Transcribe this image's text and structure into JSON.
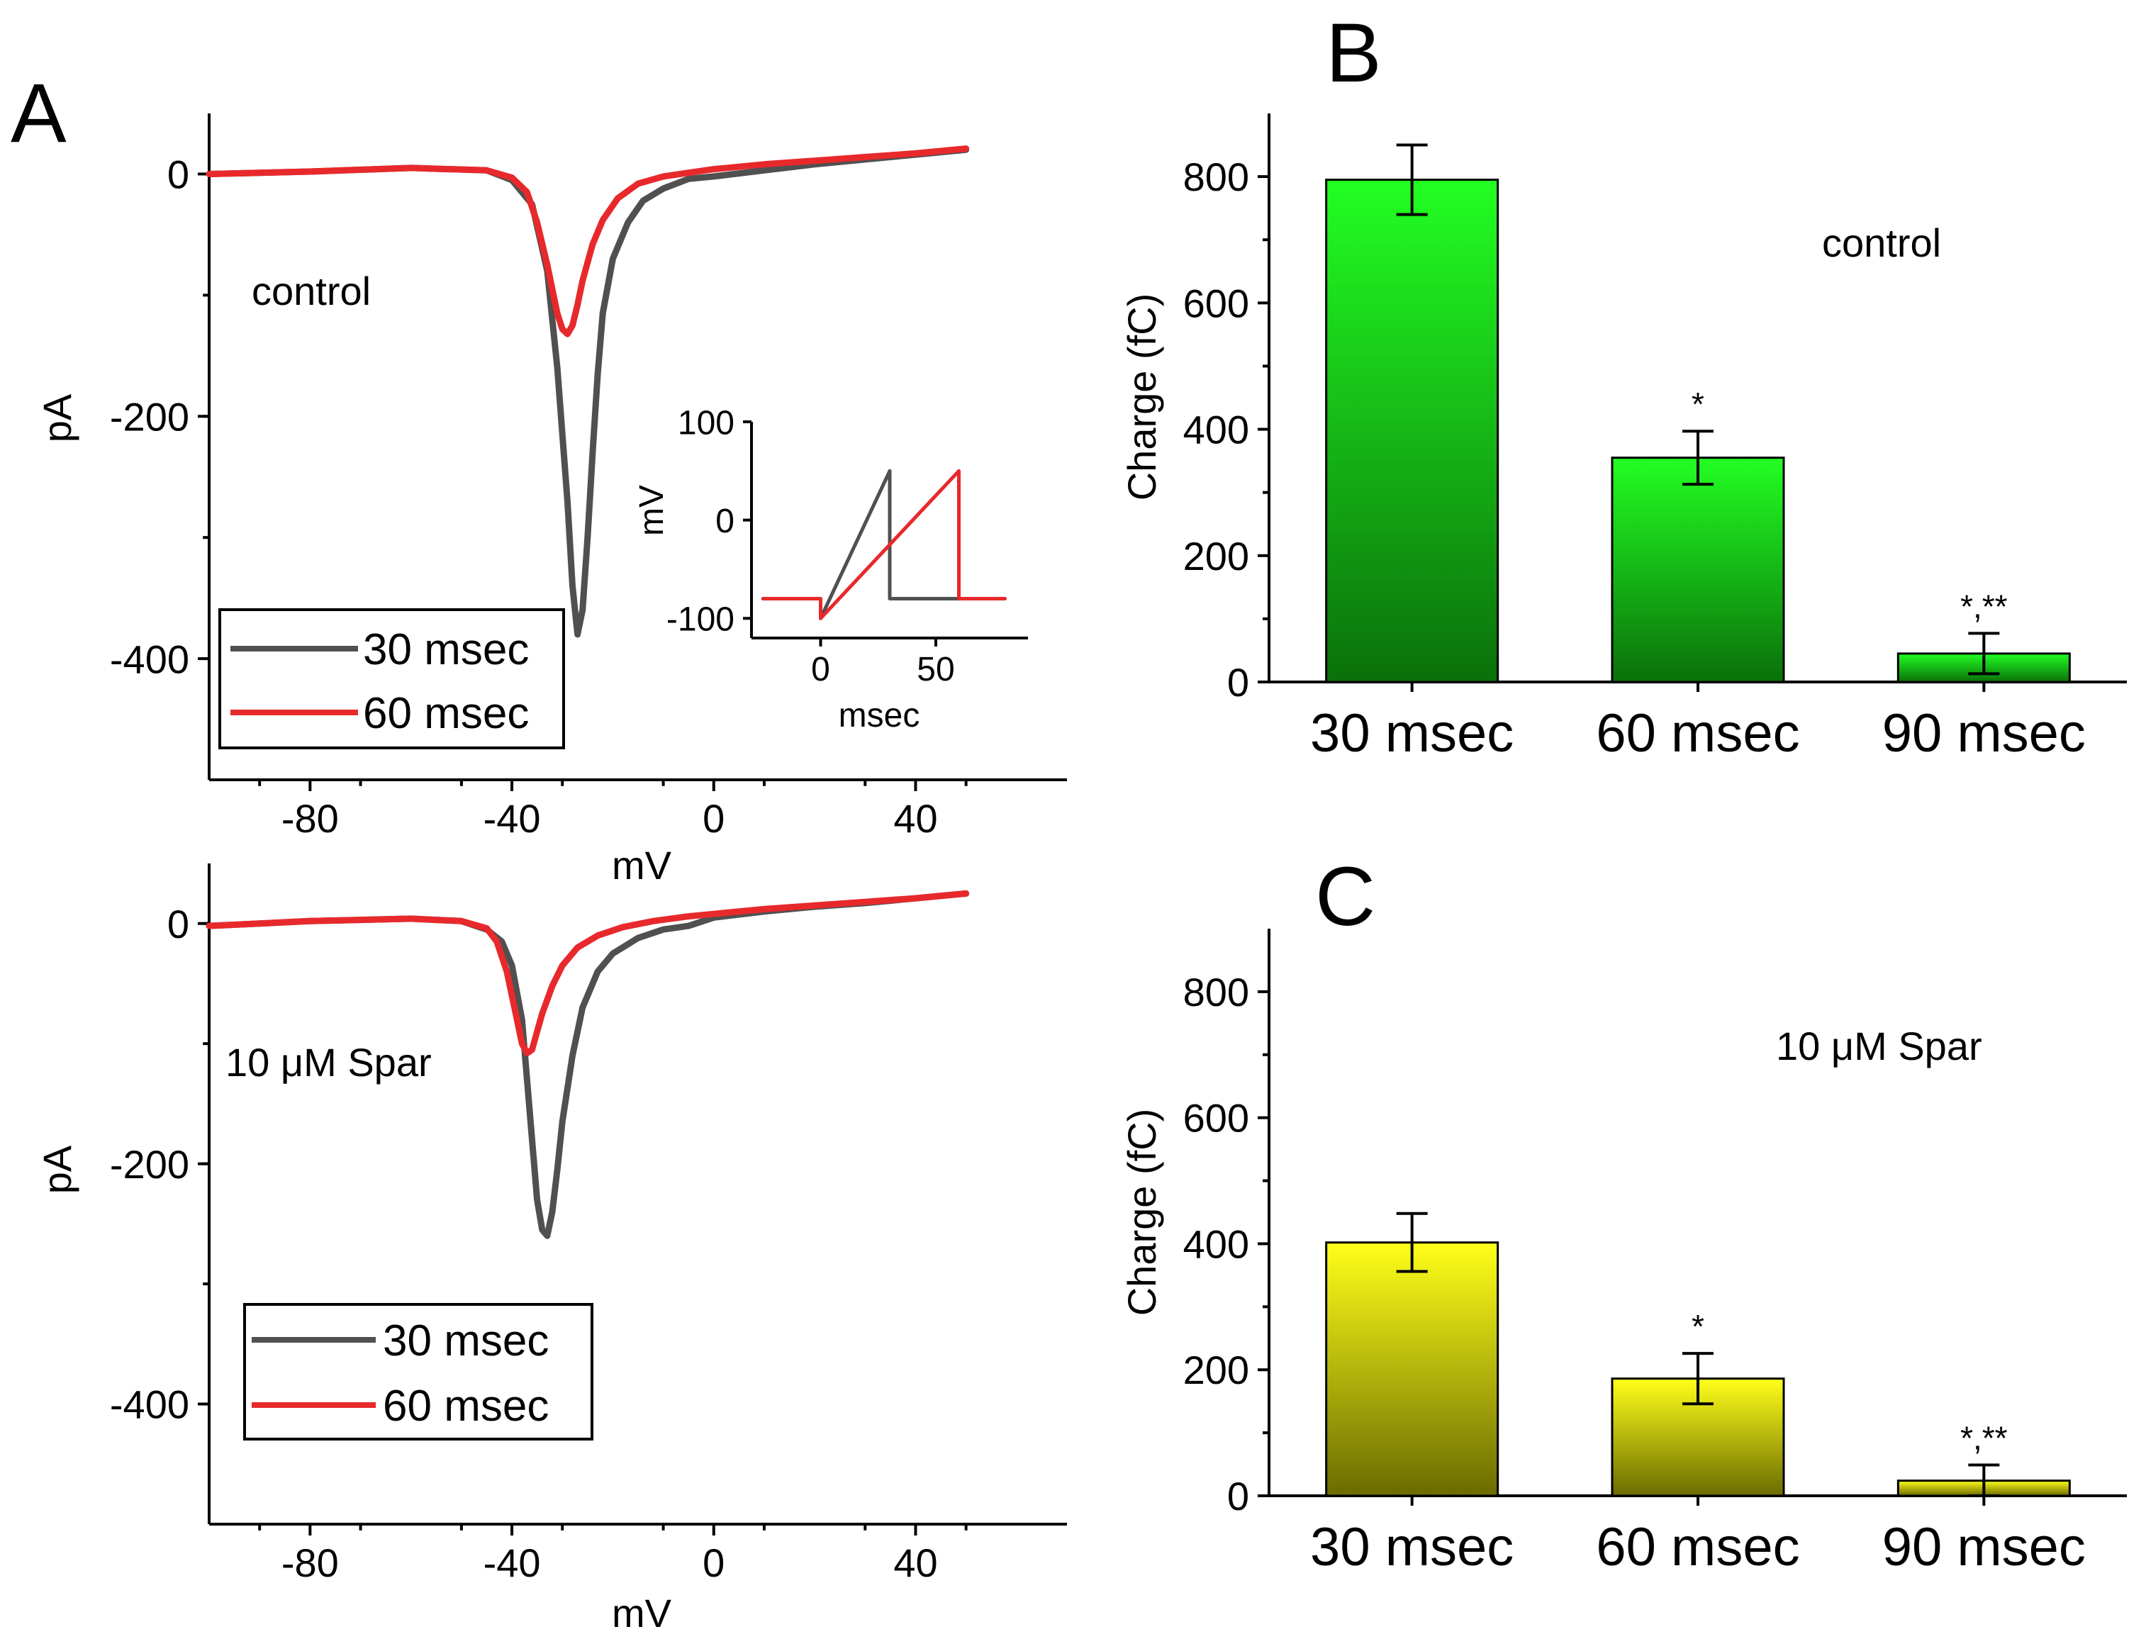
{
  "colors": {
    "trace_30": "#505050",
    "trace_60": "#e8292c",
    "bar_control_top": "#22ff22",
    "bar_control_bottom": "#0a700a",
    "bar_spar_top": "#ffff1a",
    "bar_spar_bottom": "#6b6b00",
    "error_bar": "#000000"
  },
  "chart_data": [
    {
      "id": "A_top",
      "type": "line",
      "panel_label": "A",
      "annotation": "control",
      "xlabel": "mV",
      "ylabel": "pA",
      "xlim": [
        -100,
        70
      ],
      "ylim": [
        -500,
        50
      ],
      "xticks": [
        -80,
        -40,
        0,
        40
      ],
      "yticks": [
        0,
        -200,
        -400
      ],
      "legend": [
        "30 msec",
        "60 msec"
      ],
      "legend_position": "bottom-left",
      "series": [
        {
          "name": "30 msec",
          "x": [
            -100,
            -80,
            -60,
            -45,
            -40,
            -36,
            -33,
            -31,
            -29,
            -28,
            -27,
            -26,
            -25,
            -24,
            -23,
            -22,
            -20,
            -17,
            -14,
            -10,
            -5,
            0,
            10,
            20,
            30,
            40,
            50
          ],
          "y": [
            0,
            2,
            5,
            3,
            -5,
            -25,
            -80,
            -160,
            -270,
            -340,
            -380,
            -360,
            -300,
            -230,
            -165,
            -115,
            -70,
            -40,
            -22,
            -12,
            -4,
            -2,
            3,
            8,
            12,
            16,
            20
          ]
        },
        {
          "name": "60 msec",
          "x": [
            -100,
            -80,
            -60,
            -45,
            -40,
            -37,
            -35,
            -33,
            -32,
            -31,
            -30,
            -29,
            -28,
            -27,
            -26,
            -24,
            -22,
            -19,
            -15,
            -10,
            -5,
            0,
            10,
            20,
            30,
            40,
            50
          ],
          "y": [
            0,
            2,
            5,
            3,
            -3,
            -15,
            -40,
            -75,
            -95,
            -115,
            -128,
            -132,
            -125,
            -108,
            -88,
            -58,
            -38,
            -20,
            -8,
            -2,
            1,
            4,
            8,
            11,
            14,
            17,
            21
          ]
        }
      ],
      "inset": {
        "xlabel": "msec",
        "ylabel": "mV",
        "xlim": [
          -30,
          90
        ],
        "ylim": [
          -120,
          100
        ],
        "xticks": [
          0,
          50
        ],
        "yticks": [
          100,
          0,
          -100
        ],
        "series": [
          {
            "name": "30 msec",
            "x": [
              -25,
              0,
              0,
              30,
              30,
              80
            ],
            "y": [
              -80,
              -80,
              -100,
              50,
              -80,
              -80
            ]
          },
          {
            "name": "60 msec",
            "x": [
              -25,
              0,
              0,
              60,
              60,
              80
            ],
            "y": [
              -80,
              -80,
              -100,
              50,
              -80,
              -80
            ]
          }
        ]
      }
    },
    {
      "id": "A_bottom",
      "type": "line",
      "annotation": "10 μM Spar",
      "xlabel": "mV",
      "ylabel": "pA",
      "xlim": [
        -100,
        70
      ],
      "ylim": [
        -500,
        50
      ],
      "xticks": [
        -80,
        -40,
        0,
        40
      ],
      "yticks": [
        0,
        -200,
        -400
      ],
      "legend": [
        "30 msec",
        "60 msec"
      ],
      "legend_position": "bottom-left",
      "series": [
        {
          "name": "30 msec",
          "x": [
            -100,
            -80,
            -60,
            -50,
            -45,
            -42,
            -40,
            -38,
            -37,
            -36,
            -35,
            -34,
            -33,
            -32,
            -31,
            -30,
            -28,
            -26,
            -23,
            -20,
            -15,
            -10,
            -5,
            0,
            10,
            20,
            30,
            40,
            50
          ],
          "y": [
            -2,
            2,
            4,
            2,
            -5,
            -15,
            -35,
            -80,
            -130,
            -180,
            -230,
            -255,
            -260,
            -240,
            -205,
            -165,
            -110,
            -70,
            -40,
            -25,
            -12,
            -5,
            -2,
            5,
            10,
            14,
            17,
            21,
            25
          ]
        },
        {
          "name": "60 msec",
          "x": [
            -100,
            -80,
            -60,
            -50,
            -45,
            -43,
            -41,
            -39,
            -38,
            -37,
            -36,
            -35,
            -34,
            -32,
            -30,
            -27,
            -23,
            -18,
            -12,
            -5,
            0,
            10,
            20,
            30,
            40,
            50
          ],
          "y": [
            -2,
            2,
            4,
            2,
            -4,
            -15,
            -40,
            -80,
            -100,
            -108,
            -105,
            -90,
            -75,
            -52,
            -35,
            -20,
            -10,
            -3,
            2,
            6,
            8,
            12,
            15,
            18,
            21,
            25
          ]
        }
      ]
    },
    {
      "id": "B",
      "type": "bar",
      "panel_label": "B",
      "annotation": "control",
      "ylabel": "Charge (fC)",
      "ylim": [
        0,
        900
      ],
      "yticks": [
        0,
        200,
        400,
        600,
        800
      ],
      "categories": [
        "30 msec",
        "60 msec",
        "90 msec"
      ],
      "values": [
        795,
        355,
        45
      ],
      "errors": [
        55,
        42,
        32
      ],
      "significance": [
        "",
        "*",
        "*,**"
      ]
    },
    {
      "id": "C",
      "type": "bar",
      "panel_label": "C",
      "annotation": "10 μM Spar",
      "ylabel": "Charge (fC)",
      "ylim": [
        0,
        900
      ],
      "yticks": [
        0,
        200,
        400,
        600,
        800
      ],
      "categories": [
        "30 msec",
        "60 msec",
        "90 msec"
      ],
      "values": [
        402,
        186,
        24
      ],
      "errors": [
        46,
        40,
        25
      ],
      "significance": [
        "",
        "*",
        "*,**"
      ]
    }
  ]
}
